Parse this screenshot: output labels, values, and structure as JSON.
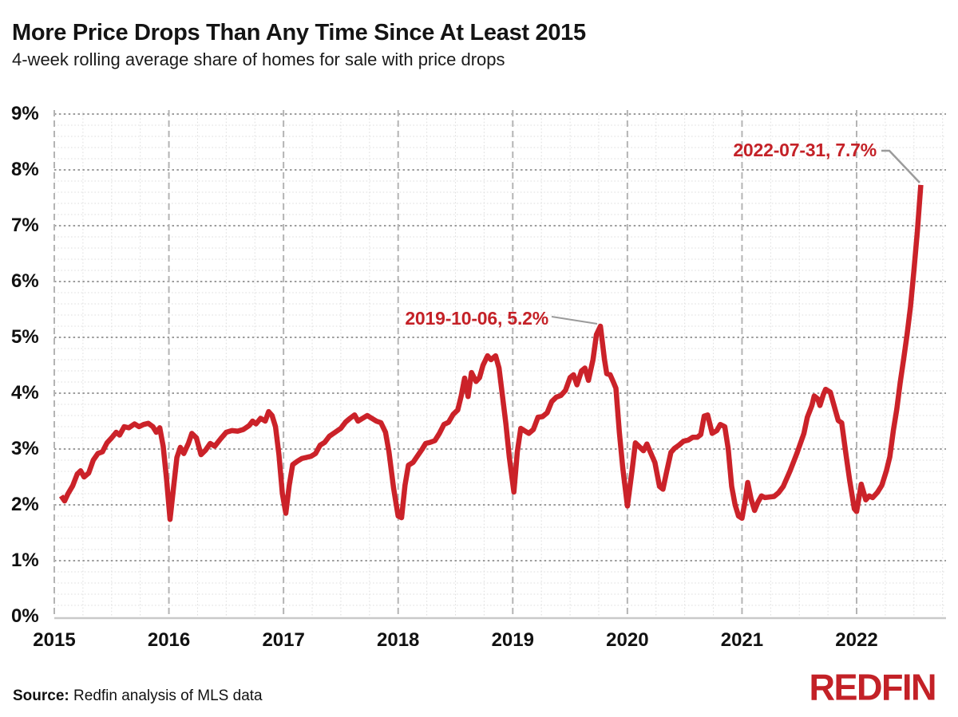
{
  "header": {
    "title": "More Price Drops Than Any Time Since At Least 2015",
    "subtitle": "4-week rolling average share of homes for sale with price drops"
  },
  "footer": {
    "source_label": "Source:",
    "source_text": " Redfin analysis of MLS data",
    "logo_text": "REDFIN"
  },
  "colors": {
    "line": "#cb2229",
    "annotation_text": "#c42127",
    "callout": "#9b9b9b",
    "logo": "#c32127",
    "major_grid": "#9c9c9c",
    "minor_grid": "#dedede",
    "year_grid": "#b4b4b4",
    "axis_line": "#c9c9c9",
    "text": "#111111"
  },
  "chart_data": {
    "type": "line",
    "title": "More Price Drops Than Any Time Since At Least 2015",
    "subtitle": "4-week rolling average share of homes for sale with price drops",
    "xlabel": "",
    "ylabel": "share of homes for sale with price drops",
    "unit": "%",
    "xlim": [
      2015,
      2022.78
    ],
    "ylim": [
      0,
      9
    ],
    "grid": {
      "y_major_step": 1,
      "y_minor_step": 0.2,
      "x_major_step": 1,
      "x_minor_step": 0.25,
      "style": "dotted-major, dashed-year-lines"
    },
    "legend": "none",
    "y_ticks": {
      "values": [
        0,
        1,
        2,
        3,
        4,
        5,
        6,
        7,
        8,
        9
      ],
      "labels": [
        "0%",
        "1%",
        "2%",
        "3%",
        "4%",
        "5%",
        "6%",
        "7%",
        "8%",
        "9%"
      ]
    },
    "x_ticks": {
      "values": [
        2015,
        2016,
        2017,
        2018,
        2019,
        2020,
        2021,
        2022
      ],
      "labels": [
        "2015",
        "2016",
        "2017",
        "2018",
        "2019",
        "2020",
        "2021",
        "2022"
      ]
    },
    "annotations": [
      {
        "label": "2019-10-06, 5.2%",
        "date": "2019-10-06",
        "x": 2019.765,
        "value": 5.2
      },
      {
        "label": "2022-07-31, 7.7%",
        "date": "2022-07-31",
        "x": 2022.56,
        "value": 7.7
      }
    ],
    "series": [
      {
        "name": "share_of_homes_with_price_drops_pct",
        "points": [
          [
            2015.06,
            2.16
          ],
          [
            2015.09,
            2.07
          ],
          [
            2015.12,
            2.2
          ],
          [
            2015.16,
            2.34
          ],
          [
            2015.2,
            2.55
          ],
          [
            2015.23,
            2.61
          ],
          [
            2015.26,
            2.5
          ],
          [
            2015.3,
            2.57
          ],
          [
            2015.34,
            2.8
          ],
          [
            2015.38,
            2.92
          ],
          [
            2015.42,
            2.95
          ],
          [
            2015.46,
            3.11
          ],
          [
            2015.5,
            3.2
          ],
          [
            2015.54,
            3.3
          ],
          [
            2015.57,
            3.25
          ],
          [
            2015.61,
            3.4
          ],
          [
            2015.65,
            3.38
          ],
          [
            2015.7,
            3.45
          ],
          [
            2015.74,
            3.4
          ],
          [
            2015.78,
            3.44
          ],
          [
            2015.82,
            3.46
          ],
          [
            2015.86,
            3.4
          ],
          [
            2015.89,
            3.3
          ],
          [
            2015.92,
            3.38
          ],
          [
            2015.95,
            3.05
          ],
          [
            2015.98,
            2.45
          ],
          [
            2016.01,
            1.74
          ],
          [
            2016.04,
            2.3
          ],
          [
            2016.07,
            2.85
          ],
          [
            2016.1,
            3.03
          ],
          [
            2016.13,
            2.92
          ],
          [
            2016.17,
            3.1
          ],
          [
            2016.2,
            3.28
          ],
          [
            2016.24,
            3.2
          ],
          [
            2016.28,
            2.9
          ],
          [
            2016.32,
            2.98
          ],
          [
            2016.36,
            3.1
          ],
          [
            2016.4,
            3.05
          ],
          [
            2016.45,
            3.18
          ],
          [
            2016.5,
            3.3
          ],
          [
            2016.55,
            3.33
          ],
          [
            2016.6,
            3.32
          ],
          [
            2016.65,
            3.35
          ],
          [
            2016.7,
            3.42
          ],
          [
            2016.73,
            3.5
          ],
          [
            2016.76,
            3.45
          ],
          [
            2016.8,
            3.55
          ],
          [
            2016.84,
            3.5
          ],
          [
            2016.87,
            3.67
          ],
          [
            2016.9,
            3.6
          ],
          [
            2016.93,
            3.4
          ],
          [
            2016.96,
            2.9
          ],
          [
            2016.99,
            2.2
          ],
          [
            2017.02,
            1.85
          ],
          [
            2017.05,
            2.35
          ],
          [
            2017.08,
            2.72
          ],
          [
            2017.12,
            2.78
          ],
          [
            2017.16,
            2.83
          ],
          [
            2017.2,
            2.85
          ],
          [
            2017.24,
            2.87
          ],
          [
            2017.28,
            2.92
          ],
          [
            2017.32,
            3.07
          ],
          [
            2017.36,
            3.12
          ],
          [
            2017.4,
            3.23
          ],
          [
            2017.45,
            3.3
          ],
          [
            2017.5,
            3.37
          ],
          [
            2017.54,
            3.48
          ],
          [
            2017.58,
            3.55
          ],
          [
            2017.62,
            3.61
          ],
          [
            2017.65,
            3.5
          ],
          [
            2017.69,
            3.55
          ],
          [
            2017.73,
            3.6
          ],
          [
            2017.77,
            3.55
          ],
          [
            2017.81,
            3.5
          ],
          [
            2017.85,
            3.47
          ],
          [
            2017.89,
            3.3
          ],
          [
            2017.92,
            2.95
          ],
          [
            2017.96,
            2.3
          ],
          [
            2018.0,
            1.8
          ],
          [
            2018.03,
            1.77
          ],
          [
            2018.06,
            2.35
          ],
          [
            2018.09,
            2.71
          ],
          [
            2018.13,
            2.76
          ],
          [
            2018.17,
            2.88
          ],
          [
            2018.21,
            3.0
          ],
          [
            2018.24,
            3.1
          ],
          [
            2018.28,
            3.12
          ],
          [
            2018.32,
            3.15
          ],
          [
            2018.36,
            3.28
          ],
          [
            2018.4,
            3.44
          ],
          [
            2018.44,
            3.48
          ],
          [
            2018.48,
            3.62
          ],
          [
            2018.52,
            3.7
          ],
          [
            2018.55,
            3.95
          ],
          [
            2018.58,
            4.27
          ],
          [
            2018.61,
            3.94
          ],
          [
            2018.64,
            4.37
          ],
          [
            2018.68,
            4.21
          ],
          [
            2018.71,
            4.28
          ],
          [
            2018.74,
            4.5
          ],
          [
            2018.78,
            4.67
          ],
          [
            2018.81,
            4.6
          ],
          [
            2018.85,
            4.67
          ],
          [
            2018.88,
            4.45
          ],
          [
            2018.91,
            3.95
          ],
          [
            2018.94,
            3.45
          ],
          [
            2018.97,
            2.85
          ],
          [
            2019.01,
            2.23
          ],
          [
            2019.04,
            2.95
          ],
          [
            2019.07,
            3.37
          ],
          [
            2019.1,
            3.33
          ],
          [
            2019.14,
            3.28
          ],
          [
            2019.18,
            3.35
          ],
          [
            2019.22,
            3.57
          ],
          [
            2019.26,
            3.58
          ],
          [
            2019.3,
            3.65
          ],
          [
            2019.34,
            3.85
          ],
          [
            2019.38,
            3.93
          ],
          [
            2019.42,
            3.96
          ],
          [
            2019.46,
            4.05
          ],
          [
            2019.5,
            4.28
          ],
          [
            2019.53,
            4.33
          ],
          [
            2019.56,
            4.15
          ],
          [
            2019.6,
            4.4
          ],
          [
            2019.63,
            4.45
          ],
          [
            2019.66,
            4.23
          ],
          [
            2019.7,
            4.6
          ],
          [
            2019.73,
            5.05
          ],
          [
            2019.765,
            5.2
          ],
          [
            2019.8,
            4.6
          ],
          [
            2019.82,
            4.35
          ],
          [
            2019.85,
            4.33
          ],
          [
            2019.88,
            4.19
          ],
          [
            2019.9,
            4.09
          ],
          [
            2019.93,
            3.3
          ],
          [
            2019.96,
            2.66
          ],
          [
            2020.0,
            1.98
          ],
          [
            2020.04,
            2.6
          ],
          [
            2020.07,
            3.11
          ],
          [
            2020.1,
            3.05
          ],
          [
            2020.14,
            2.97
          ],
          [
            2020.17,
            3.09
          ],
          [
            2020.21,
            2.9
          ],
          [
            2020.24,
            2.76
          ],
          [
            2020.28,
            2.33
          ],
          [
            2020.31,
            2.28
          ],
          [
            2020.34,
            2.57
          ],
          [
            2020.38,
            2.94
          ],
          [
            2020.41,
            3.01
          ],
          [
            2020.45,
            3.07
          ],
          [
            2020.49,
            3.14
          ],
          [
            2020.53,
            3.16
          ],
          [
            2020.57,
            3.21
          ],
          [
            2020.61,
            3.21
          ],
          [
            2020.64,
            3.26
          ],
          [
            2020.67,
            3.59
          ],
          [
            2020.7,
            3.61
          ],
          [
            2020.74,
            3.28
          ],
          [
            2020.78,
            3.33
          ],
          [
            2020.81,
            3.44
          ],
          [
            2020.85,
            3.4
          ],
          [
            2020.88,
            3.0
          ],
          [
            2020.91,
            2.33
          ],
          [
            2020.94,
            2.0
          ],
          [
            2020.97,
            1.8
          ],
          [
            2021.0,
            1.76
          ],
          [
            2021.03,
            2.1
          ],
          [
            2021.05,
            2.4
          ],
          [
            2021.08,
            2.1
          ],
          [
            2021.11,
            1.9
          ],
          [
            2021.14,
            2.05
          ],
          [
            2021.17,
            2.16
          ],
          [
            2021.2,
            2.13
          ],
          [
            2021.24,
            2.14
          ],
          [
            2021.28,
            2.15
          ],
          [
            2021.32,
            2.22
          ],
          [
            2021.36,
            2.33
          ],
          [
            2021.42,
            2.61
          ],
          [
            2021.48,
            2.93
          ],
          [
            2021.54,
            3.28
          ],
          [
            2021.57,
            3.57
          ],
          [
            2021.61,
            3.78
          ],
          [
            2021.63,
            3.95
          ],
          [
            2021.66,
            3.9
          ],
          [
            2021.68,
            3.78
          ],
          [
            2021.71,
            3.98
          ],
          [
            2021.73,
            4.07
          ],
          [
            2021.77,
            4.02
          ],
          [
            2021.8,
            3.8
          ],
          [
            2021.84,
            3.51
          ],
          [
            2021.87,
            3.47
          ],
          [
            2021.91,
            2.86
          ],
          [
            2021.94,
            2.43
          ],
          [
            2021.98,
            1.93
          ],
          [
            2022.0,
            1.88
          ],
          [
            2022.04,
            2.37
          ],
          [
            2022.08,
            2.09
          ],
          [
            2022.11,
            2.16
          ],
          [
            2022.14,
            2.13
          ],
          [
            2022.18,
            2.22
          ],
          [
            2022.22,
            2.35
          ],
          [
            2022.26,
            2.61
          ],
          [
            2022.29,
            2.86
          ],
          [
            2022.32,
            3.33
          ],
          [
            2022.35,
            3.71
          ],
          [
            2022.38,
            4.19
          ],
          [
            2022.41,
            4.61
          ],
          [
            2022.44,
            5.05
          ],
          [
            2022.47,
            5.55
          ],
          [
            2022.5,
            6.2
          ],
          [
            2022.53,
            6.9
          ],
          [
            2022.56,
            7.73
          ]
        ]
      }
    ]
  }
}
